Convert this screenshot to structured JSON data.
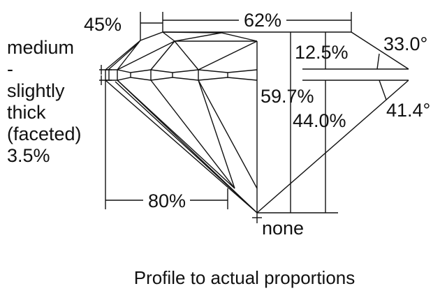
{
  "labels": {
    "lower_half_pct": "45%",
    "table_pct": "62%",
    "crown_height_pct": "12.5%",
    "crown_angle": "33.0°",
    "total_depth_pct": "59.7%",
    "pavilion_depth_pct": "44.0%",
    "pavilion_angle": "41.4°",
    "lower_girdle_pct": "80%",
    "culet": "none",
    "girdle": [
      "medium",
      "-",
      "slightly",
      "thick",
      "(faceted)",
      "3.5%"
    ]
  },
  "caption": "Profile to actual proportions"
}
